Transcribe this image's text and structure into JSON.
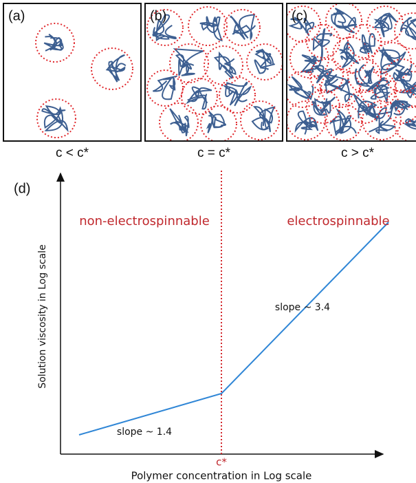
{
  "panels": [
    {
      "label": "(a)",
      "caption": "c < c*"
    },
    {
      "label": "(b)",
      "caption": "c = c*"
    },
    {
      "label": "(c)",
      "caption": "c > c*"
    }
  ],
  "plot": {
    "label": "(d)",
    "x_axis_label": "Polymer concentration in Log scale",
    "y_axis_label": "Solution viscosity in Log scale",
    "regions": [
      "non-electrospinnable",
      "electrospinnable"
    ],
    "slopes": [
      "slope ~ 1.4",
      "slope ~ 3.4"
    ],
    "threshold_label": "c*"
  }
}
